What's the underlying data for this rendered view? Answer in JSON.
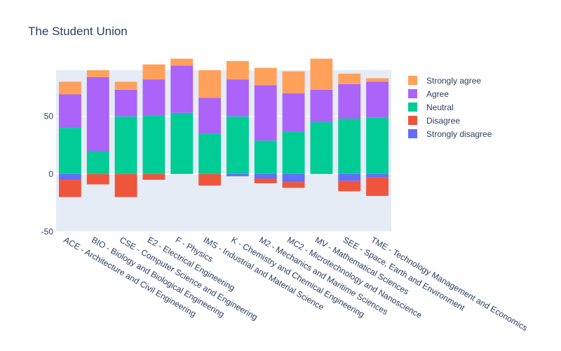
{
  "chart_data": {
    "type": "bar",
    "barmode": "relative",
    "title": "The Student Union",
    "xlabel": "",
    "ylabel": "",
    "ylim": [
      -50,
      90
    ],
    "yticks": [
      -50,
      0,
      50
    ],
    "grid": true,
    "legend_position": "right",
    "categories": [
      "ACE - Architecture and Civil Engineering",
      "BIO - Biology and Biological Engineering",
      "CSE - Computer Science and Engineering",
      "E2 - Electrical Engineering",
      "F - Physics",
      "IMS - Industrial and Material Science",
      "K - Chemistry and Chemical Engineering",
      "M2 - Mechanics and Maritime Sciences",
      "MC2 - Microtechnology and Nanoscience",
      "MV - Mathematical Sciences",
      "SEE - Space, Earth and Environment",
      "TME - Technology Management and Economics"
    ],
    "series": [
      {
        "name": "Strongly disagree",
        "color": "#636efa",
        "values": [
          -5,
          0,
          0,
          0,
          0,
          0,
          -2,
          -4,
          -7,
          0,
          -6,
          -3
        ]
      },
      {
        "name": "Disagree",
        "color": "#ef553b",
        "values": [
          -15,
          -9,
          -20,
          -5,
          0,
          -10,
          0,
          -4,
          -5,
          0,
          -9,
          -16
        ]
      },
      {
        "name": "Neutral",
        "color": "#00cc96",
        "values": [
          40,
          20,
          50,
          51,
          53,
          35,
          50,
          29,
          37,
          45,
          48,
          49
        ]
      },
      {
        "name": "Agree",
        "color": "#ab63fa",
        "values": [
          29,
          64,
          23,
          31,
          41,
          31,
          32,
          48,
          33,
          28,
          30,
          31
        ]
      },
      {
        "name": "Strongly agree",
        "color": "#ffa15a",
        "values": [
          11,
          6,
          7,
          13,
          6,
          24,
          16,
          15,
          19,
          27,
          9,
          3
        ]
      }
    ]
  }
}
